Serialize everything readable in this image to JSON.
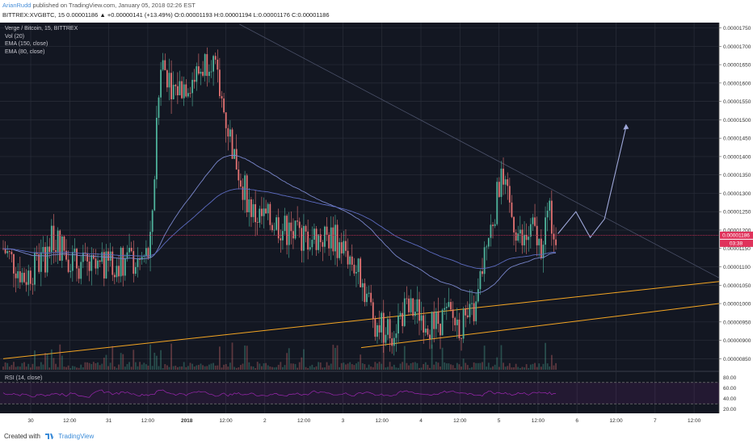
{
  "header": {
    "author": "ArianRudd",
    "published_text": "published on TradingView.com, January 05, 2018 02:26 EST",
    "symbol_line": "BITTREX:XVGBTC, 15  0.00001186 ▲ +0.00000141 (+13.49%) O:0.00001193 H:0.00001194 L:0.00001176 C:0.00001186"
  },
  "legend": {
    "title": "Verge / Bitcoin, 15, BITTREX",
    "vol": "Vol (20)",
    "ema150": "EMA (150, close)",
    "ema80": "EMA (80, close)",
    "rsi": "RSI (14, close)"
  },
  "footer": {
    "created_with": "Created with",
    "brand": "TradingView"
  },
  "price_tags": {
    "last": "0.00001186",
    "countdown": "03:38"
  },
  "colors": {
    "background": "#131722",
    "grid": "#2a2e39",
    "up": "#4fb39c",
    "down": "#e57373",
    "ema150": "#5c6bc0",
    "ema80": "#7986cb",
    "trendline": "#f5a623",
    "projection": "#9fa8da",
    "rsi": "#9c27b0",
    "price_line": "#e0325b"
  },
  "chart_data": {
    "type": "candlestick",
    "title": "Verge / Bitcoin, 15, BITTREX",
    "y_axis_ticks": [
      "0.00001750",
      "0.00001700",
      "0.00001650",
      "0.00001600",
      "0.00001550",
      "0.00001500",
      "0.00001450",
      "0.00001400",
      "0.00001350",
      "0.00001300",
      "0.00001250",
      "0.00001200",
      "0.00001150",
      "0.00001100",
      "0.00001050",
      "0.00001000",
      "0.00000950",
      "0.00000900",
      "0.00000850"
    ],
    "ylim": [
      8.2e-06,
      1.76e-05
    ],
    "x_axis_ticks": [
      "30",
      "12:00",
      "31",
      "12:00",
      "2018",
      "12:00",
      "2",
      "12:00",
      "3",
      "12:00",
      "4",
      "12:00",
      "5",
      "12:00",
      "6",
      "12:00",
      "7",
      "12:00"
    ],
    "price_path": [
      [
        0,
        1.15e-05
      ],
      [
        0.03,
        1.07e-05
      ],
      [
        0.06,
        1.13e-05
      ],
      [
        0.07,
        1.18e-05
      ],
      [
        0.1,
        1.11e-05
      ],
      [
        0.13,
        1.09e-05
      ],
      [
        0.17,
        1.12e-05
      ],
      [
        0.19,
        1.11e-05
      ],
      [
        0.205,
        1.14e-05
      ],
      [
        0.22,
        1.66e-05
      ],
      [
        0.24,
        1.58e-05
      ],
      [
        0.27,
        1.62e-05
      ],
      [
        0.29,
        1.68e-05
      ],
      [
        0.31,
        1.51e-05
      ],
      [
        0.33,
        1.35e-05
      ],
      [
        0.35,
        1.24e-05
      ],
      [
        0.38,
        1.22e-05
      ],
      [
        0.41,
        1.18e-05
      ],
      [
        0.44,
        1.18e-05
      ],
      [
        0.46,
        1.18e-05
      ],
      [
        0.48,
        1.14e-05
      ],
      [
        0.5,
        1.07e-05
      ],
      [
        0.52,
        9.5e-06
      ],
      [
        0.54,
        9.2e-06
      ],
      [
        0.56,
        9.8e-06
      ],
      [
        0.58,
        9.8e-06
      ],
      [
        0.6,
        9.4e-06
      ],
      [
        0.62,
        9.7e-06
      ],
      [
        0.64,
        9.4e-06
      ],
      [
        0.66,
        9.8e-06
      ],
      [
        0.67,
        1.11e-05
      ],
      [
        0.685,
        1.24e-05
      ],
      [
        0.695,
        1.34e-05
      ],
      [
        0.71,
        1.24e-05
      ],
      [
        0.725,
        1.16e-05
      ],
      [
        0.74,
        1.2e-05
      ],
      [
        0.75,
        1.15e-05
      ],
      [
        0.76,
        1.25e-05
      ],
      [
        0.775,
        1.19e-05
      ]
    ],
    "last_price": 1.186e-05,
    "rsi_levels": [
      80,
      60,
      40,
      20
    ],
    "rsi_band": [
      70,
      30
    ],
    "trendlines": [
      {
        "from": [
          0.0,
          8.5e-06
        ],
        "to": [
          1.0,
          1.06e-05
        ]
      },
      {
        "from": [
          0.5,
          8.8e-06
        ],
        "to": [
          1.0,
          1e-05
        ]
      }
    ],
    "projection_path": [
      [
        0.775,
        1.19e-05
      ],
      [
        0.8,
        1.25e-05
      ],
      [
        0.82,
        1.18e-05
      ],
      [
        0.84,
        1.23e-05
      ],
      [
        0.87,
        1.48e-05
      ]
    ]
  }
}
